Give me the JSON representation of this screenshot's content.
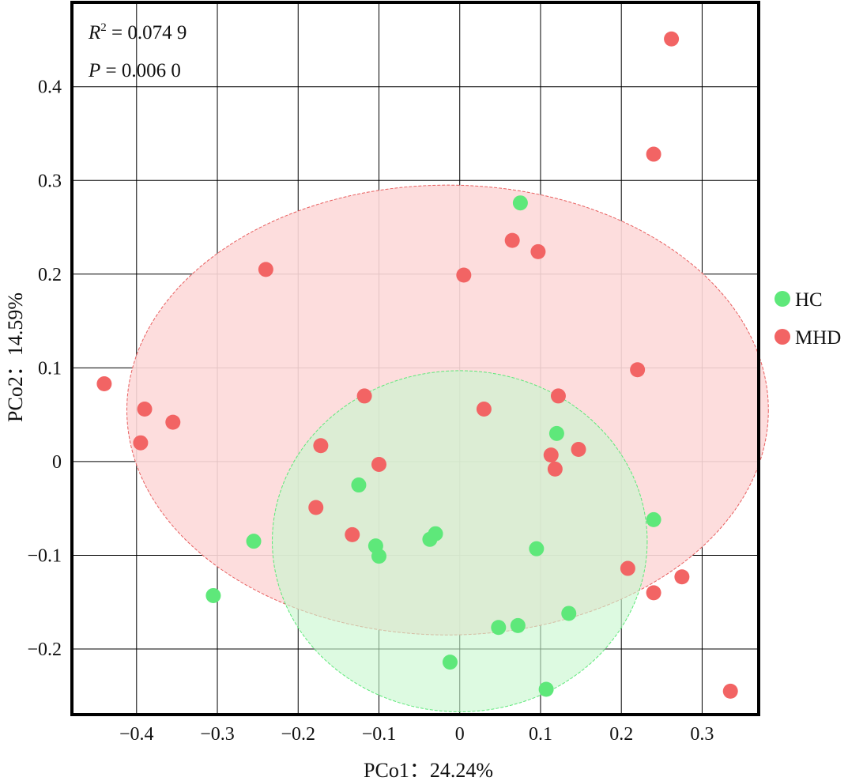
{
  "chart_data": {
    "type": "scatter",
    "xlabel": "PCo1：24.24%",
    "ylabel": "PCo2：14.59%",
    "xlim": [
      -0.48,
      0.37
    ],
    "ylim": [
      -0.27,
      0.49
    ],
    "x_ticks": [
      -0.4,
      -0.3,
      -0.2,
      -0.1,
      0,
      0.1,
      0.2,
      0.3
    ],
    "x_tick_labels": [
      "−0.4",
      "−0.3",
      "−0.2",
      "−0.1",
      "0",
      "0.1",
      "0.2",
      "0.3"
    ],
    "y_ticks": [
      -0.2,
      -0.1,
      0,
      0.1,
      0.2,
      0.3,
      0.4
    ],
    "y_tick_labels": [
      "−0.2",
      "−0.1",
      "0",
      "0.1",
      "0.2",
      "0.3",
      "0.4"
    ],
    "grid": true,
    "legend_position": "right",
    "annotations": {
      "r2_symbol": "R",
      "r2_exp": "2",
      "r2_rest": " = 0.074 9",
      "p_symbol": "P",
      "p_rest": " = 0.006 0"
    },
    "series": [
      {
        "name": "HC",
        "color": "#5ee87a",
        "ellipse_fill": "#c8f7cf",
        "ellipse_stroke": "#5ee87a",
        "ellipse": {
          "cx": 0.0,
          "cy": -0.085,
          "rx": 0.232,
          "ry": 0.182
        },
        "points": [
          [
            0.075,
            0.276
          ],
          [
            0.12,
            0.03
          ],
          [
            -0.125,
            -0.025
          ],
          [
            0.24,
            -0.062
          ],
          [
            -0.255,
            -0.085
          ],
          [
            -0.03,
            -0.077
          ],
          [
            -0.037,
            -0.083
          ],
          [
            -0.104,
            -0.09
          ],
          [
            -0.1,
            -0.101
          ],
          [
            0.095,
            -0.093
          ],
          [
            -0.305,
            -0.143
          ],
          [
            0.135,
            -0.162
          ],
          [
            0.048,
            -0.177
          ],
          [
            0.072,
            -0.175
          ],
          [
            -0.012,
            -0.214
          ],
          [
            0.107,
            -0.243
          ]
        ]
      },
      {
        "name": "MHD",
        "color": "#f26464",
        "ellipse_fill": "#fdd9d9",
        "ellipse_stroke": "#e86060",
        "ellipse": {
          "cx": -0.015,
          "cy": 0.055,
          "rx": 0.397,
          "ry": 0.24
        },
        "points": [
          [
            0.262,
            0.451
          ],
          [
            0.24,
            0.328
          ],
          [
            0.065,
            0.236
          ],
          [
            0.097,
            0.224
          ],
          [
            -0.24,
            0.205
          ],
          [
            0.005,
            0.199
          ],
          [
            0.22,
            0.098
          ],
          [
            -0.44,
            0.083
          ],
          [
            -0.39,
            0.056
          ],
          [
            -0.118,
            0.07
          ],
          [
            0.122,
            0.07
          ],
          [
            0.03,
            0.056
          ],
          [
            -0.355,
            0.042
          ],
          [
            -0.395,
            0.02
          ],
          [
            -0.172,
            0.017
          ],
          [
            0.147,
            0.013
          ],
          [
            0.113,
            0.007
          ],
          [
            -0.1,
            -0.003
          ],
          [
            0.118,
            -0.008
          ],
          [
            -0.178,
            -0.049
          ],
          [
            -0.133,
            -0.078
          ],
          [
            0.208,
            -0.114
          ],
          [
            0.275,
            -0.123
          ],
          [
            0.24,
            -0.14
          ],
          [
            0.335,
            -0.245
          ]
        ]
      }
    ]
  }
}
